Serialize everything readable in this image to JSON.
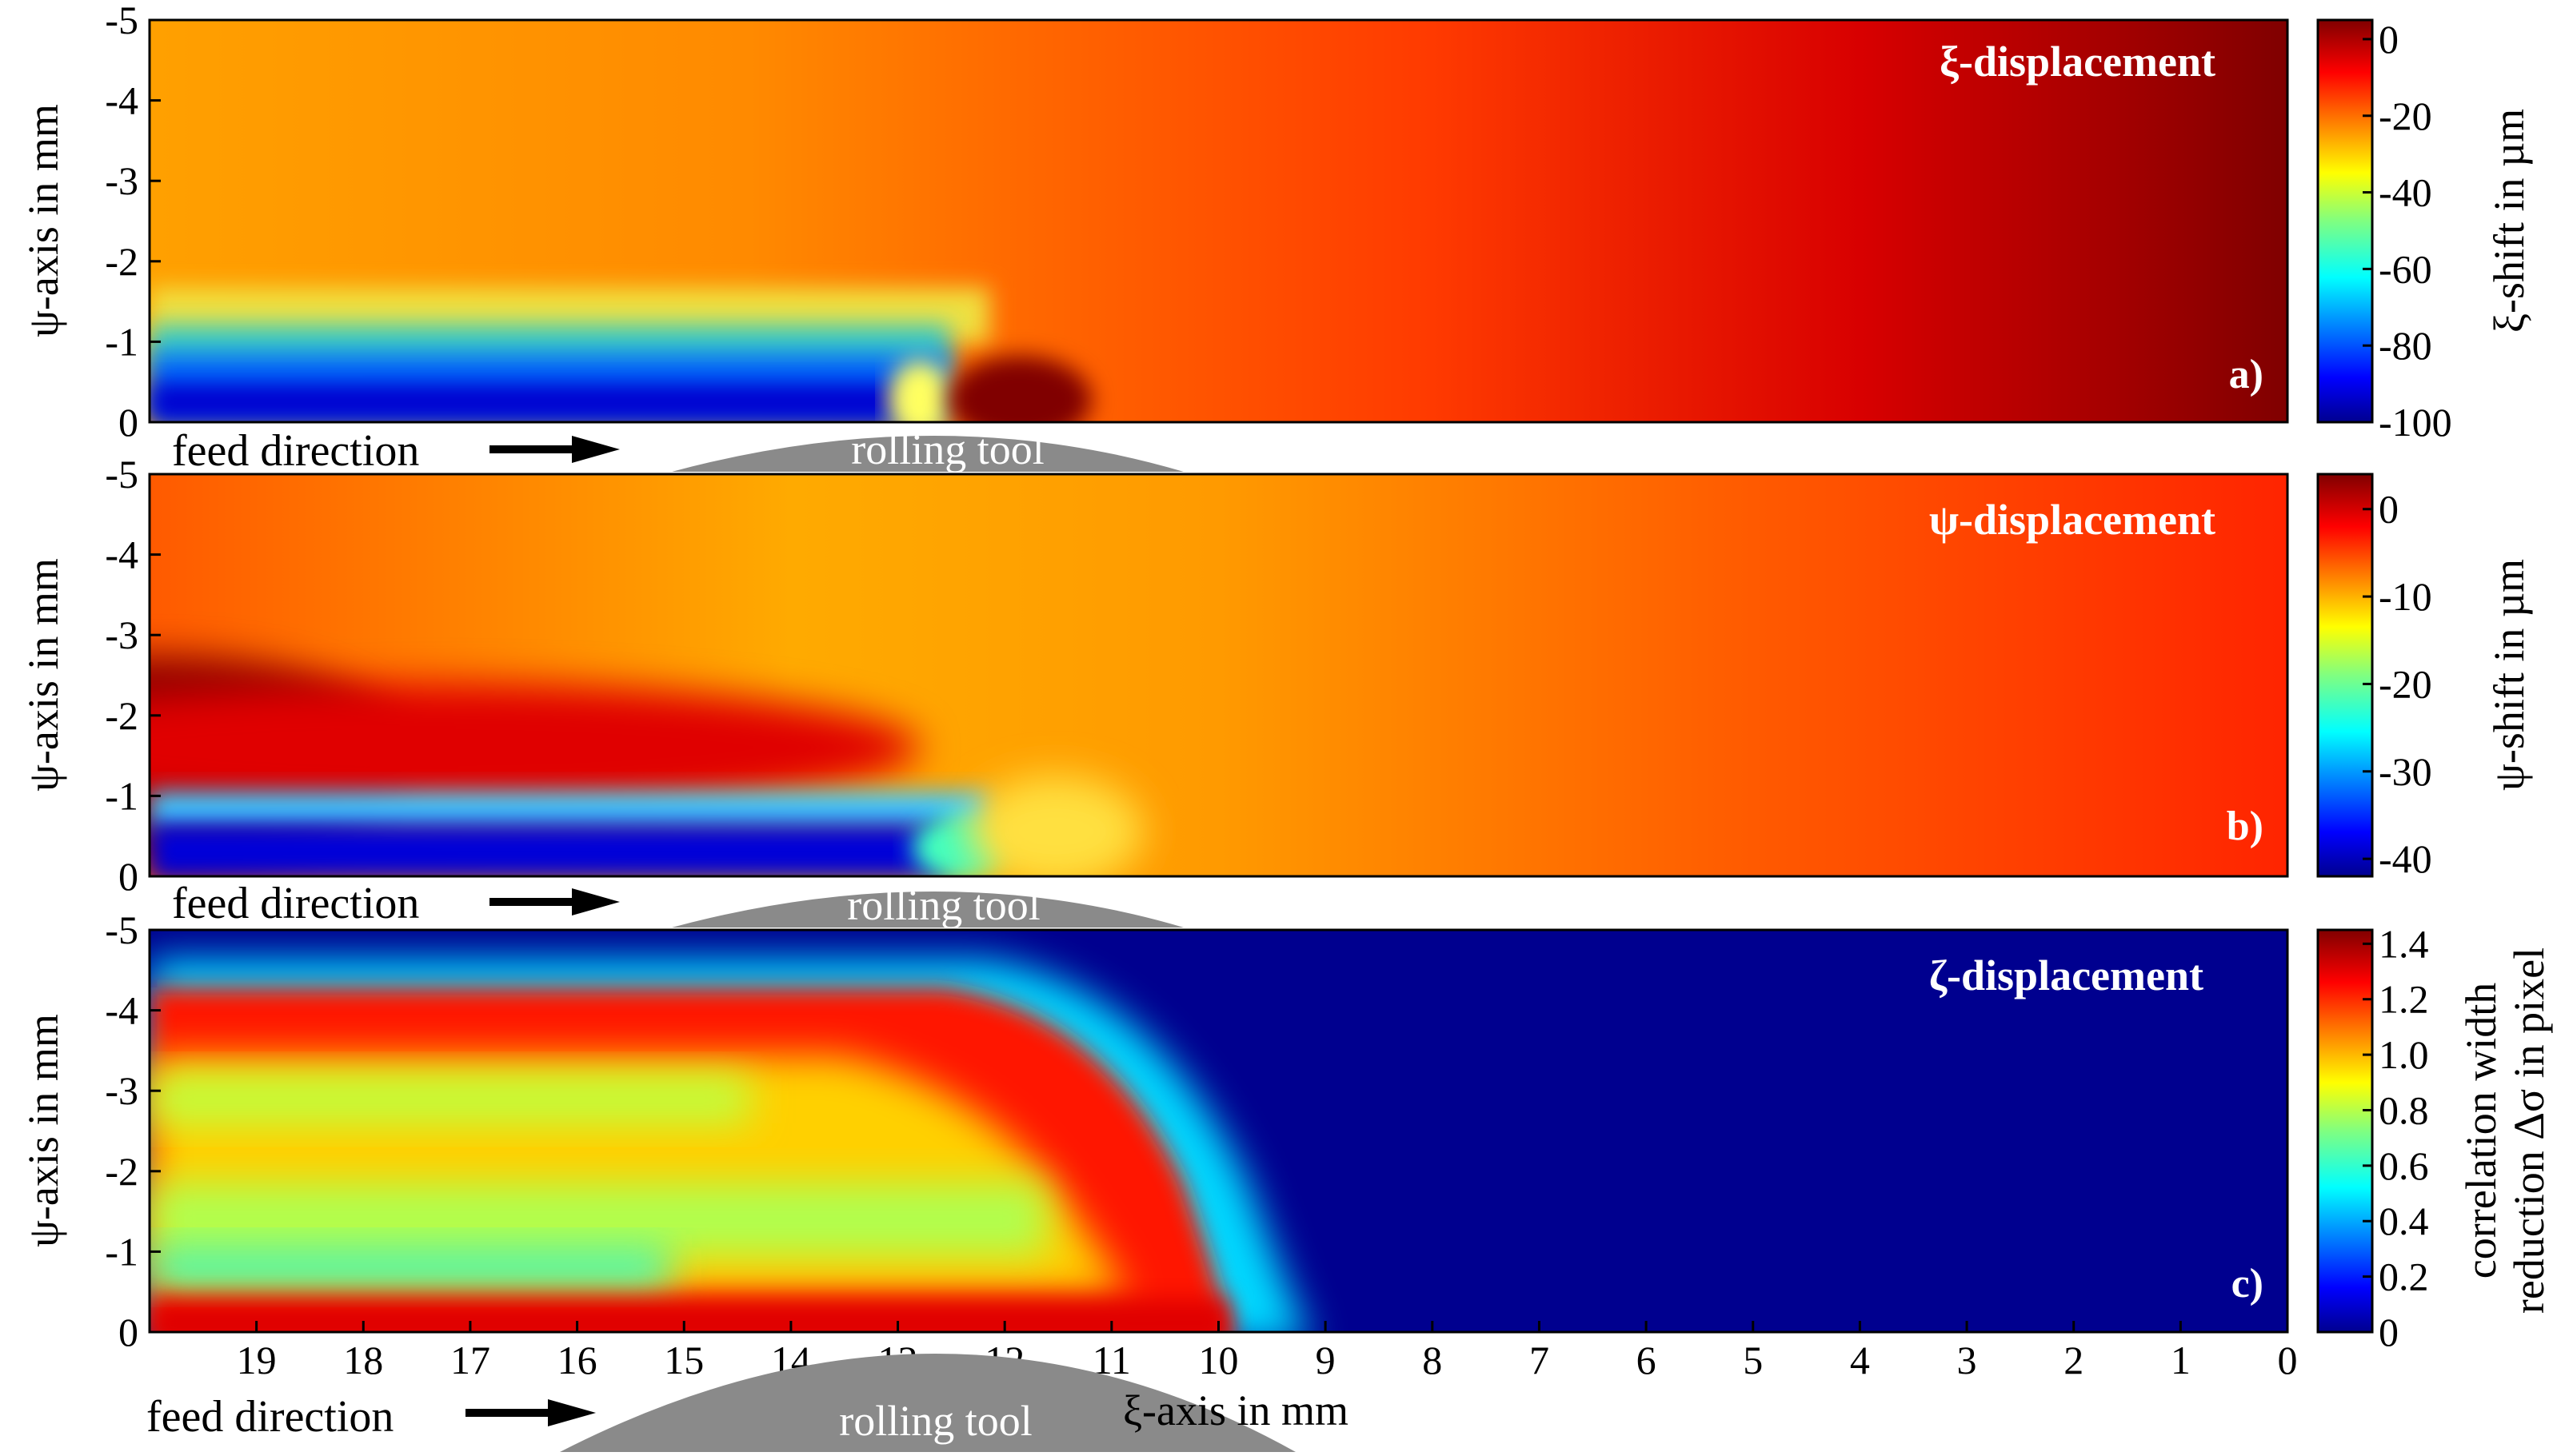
{
  "chart_data": [
    {
      "type": "heatmap",
      "panel": "a)",
      "title": "ξ-displacement",
      "xlim": [
        20,
        0
      ],
      "ylim": [
        -5,
        0
      ],
      "y_ticks": [
        "-5",
        "-4",
        "-3",
        "-2",
        "-1",
        "0"
      ],
      "ylabel": "ψ-axis in mm",
      "colorbar": {
        "label": "ξ-shift in µm",
        "range": [
          -100,
          5
        ],
        "ticks": [
          "0",
          "-20",
          "-40",
          "-60",
          "-80",
          "-100"
        ],
        "colormap": "jet"
      },
      "annotations": {
        "feed": "feed direction",
        "tool": "rolling tool"
      }
    },
    {
      "type": "heatmap",
      "panel": "b)",
      "title": "ψ-displacement",
      "xlim": [
        20,
        0
      ],
      "ylim": [
        -5,
        0
      ],
      "y_ticks": [
        "-5",
        "-4",
        "-3",
        "-2",
        "-1",
        "0"
      ],
      "ylabel": "ψ-axis in mm",
      "colorbar": {
        "label": "ψ-shift in µm",
        "range": [
          -42,
          4
        ],
        "ticks": [
          "0",
          "-10",
          "-20",
          "-30",
          "-40"
        ],
        "colormap": "jet"
      },
      "annotations": {
        "feed": "feed direction",
        "tool": "rolling tool"
      }
    },
    {
      "type": "heatmap",
      "panel": "c)",
      "title": "ζ-displacement",
      "xlim": [
        20,
        0
      ],
      "ylim": [
        -5,
        0
      ],
      "y_ticks": [
        "-5",
        "-4",
        "-3",
        "-2",
        "-1",
        "0"
      ],
      "x_ticks": [
        "19",
        "18",
        "17",
        "16",
        "15",
        "14",
        "13",
        "12",
        "11",
        "10",
        "9",
        "8",
        "7",
        "6",
        "5",
        "4",
        "3",
        "2",
        "1",
        "0"
      ],
      "xlabel": "ξ-axis in mm",
      "ylabel": "ψ-axis in mm",
      "colorbar": {
        "label_line1": "correlation width",
        "label_line2": "reduction Δσ in pixel",
        "range": [
          0,
          1.45
        ],
        "ticks": [
          "1.4",
          "1.2",
          "1.0",
          "0.8",
          "0.6",
          "0.4",
          "0.2",
          "0"
        ],
        "colormap": "jet"
      },
      "annotations": {
        "feed": "feed direction",
        "tool": "rolling tool"
      }
    }
  ]
}
